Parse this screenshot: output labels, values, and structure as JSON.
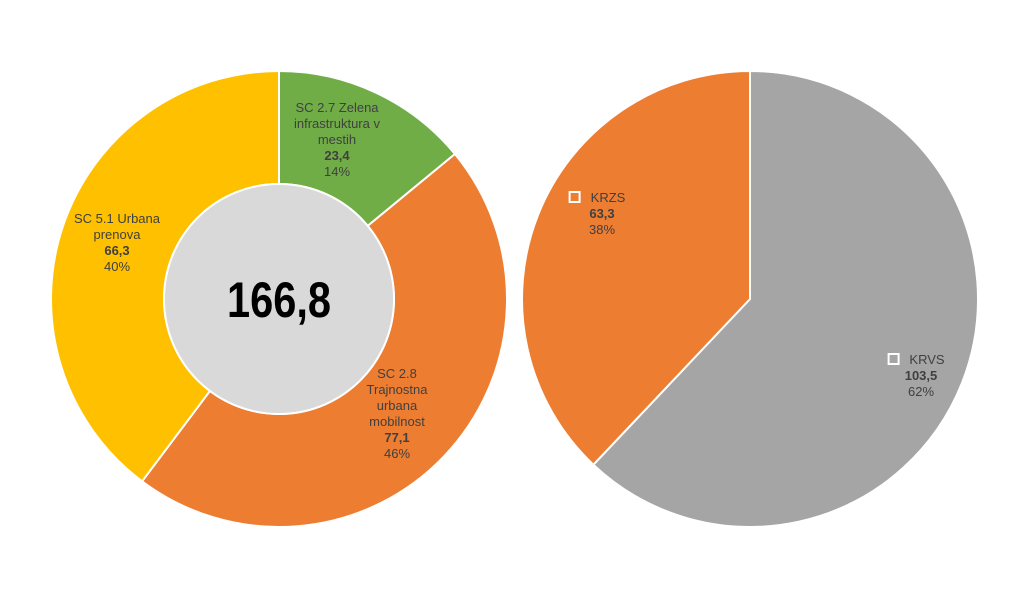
{
  "chart_data": [
    {
      "type": "pie",
      "variant": "donut",
      "center_label": "166,8",
      "center_color": "#d9d9d9",
      "slices": [
        {
          "label_lines": [
            "SC 2.7 Zelena",
            "infrastruktura v",
            "mestih"
          ],
          "value": 23.4,
          "value_label": "23,4",
          "percent_label": "14%",
          "color": "#70ad47"
        },
        {
          "label_lines": [
            "SC 2.8",
            "Trajnostna",
            "urbana",
            "mobilnost"
          ],
          "value": 77.1,
          "value_label": "77,1",
          "percent_label": "46%",
          "color": "#ed7d31"
        },
        {
          "label_lines": [
            "SC 5.1 Urbana",
            "prenova"
          ],
          "value": 66.3,
          "value_label": "66,3",
          "percent_label": "40%",
          "color": "#ffc000"
        }
      ]
    },
    {
      "type": "pie",
      "slices": [
        {
          "label_lines": [
            "KRVS"
          ],
          "value": 103.5,
          "value_label": "103,5",
          "percent_label": "62%",
          "color": "#a5a5a5"
        },
        {
          "label_lines": [
            "KRZS"
          ],
          "value": 63.3,
          "value_label": "63,3",
          "percent_label": "38%",
          "color": "#ed7d31"
        }
      ]
    }
  ]
}
